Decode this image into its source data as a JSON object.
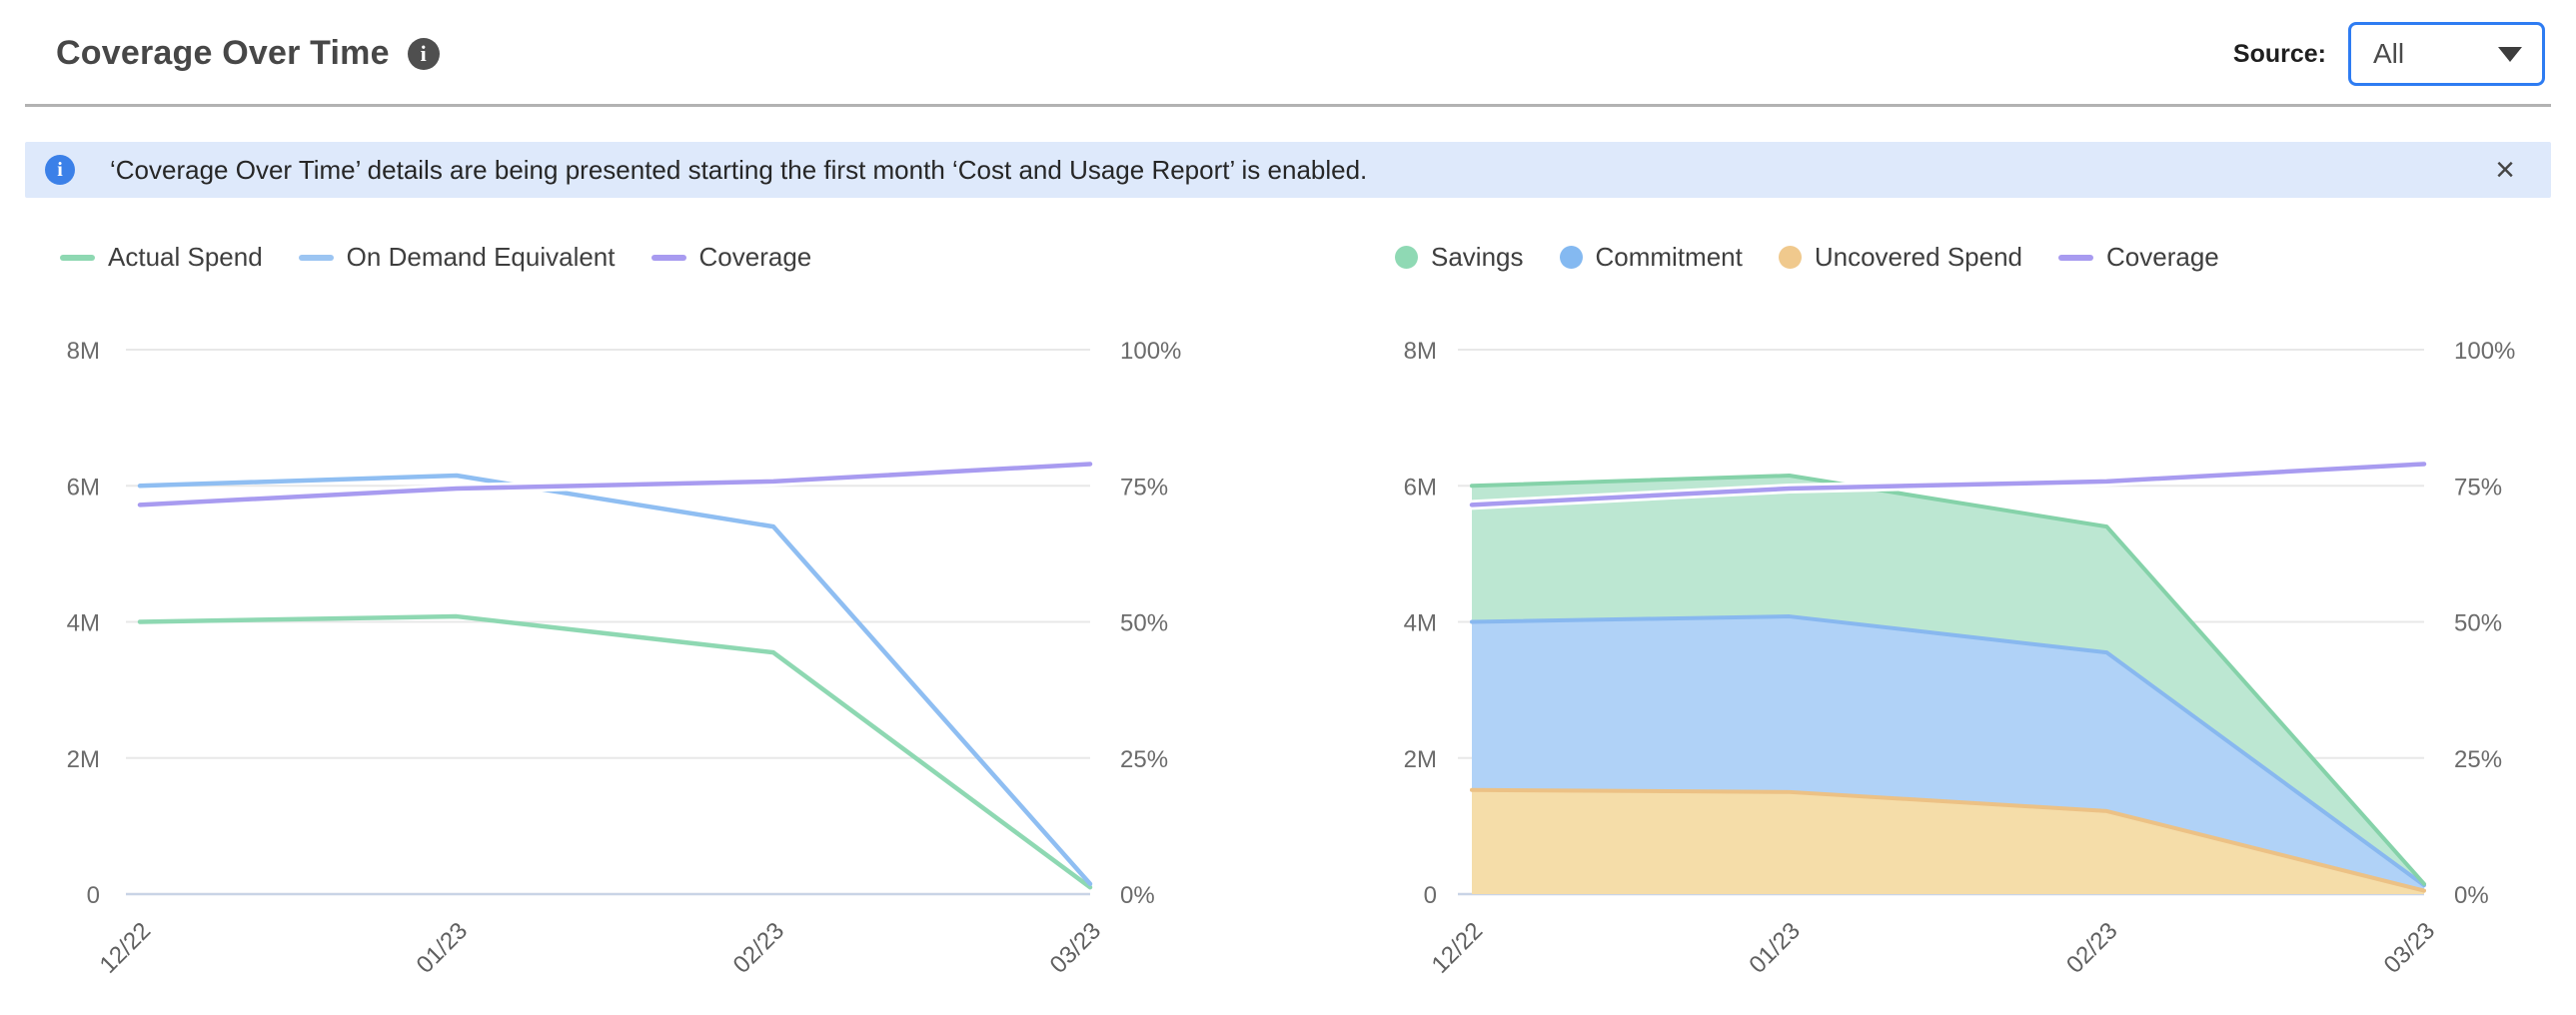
{
  "header": {
    "title": "Coverage Over Time",
    "source_label": "Source:",
    "source_value": "All"
  },
  "banner": {
    "text": "‘Coverage Over Time’ details are being presented starting the first month ‘Cost and Usage Report’ is enabled.",
    "close_glyph": "×"
  },
  "colors": {
    "green": "#8ed8b2",
    "green_fill": "#bce7d2",
    "blue": "#8fbef2",
    "blue_fill": "#b0d2f7",
    "orange": "#ecc185",
    "orange_fill": "#f5dda9",
    "purple": "#a89bf0",
    "grid": "#e8e8e8",
    "axis_line": "#c9d4e6",
    "tick_text": "#6b6b6b",
    "x_text": "#5f5f5f"
  },
  "chart_data": [
    {
      "type": "line",
      "x": [
        "12/22",
        "01/23",
        "02/23",
        "03/23"
      ],
      "y_left": {
        "ticks": [
          "8M",
          "6M",
          "4M",
          "2M",
          "0"
        ],
        "max": 8000000
      },
      "y_right": {
        "ticks": [
          "100%",
          "75%",
          "50%",
          "25%",
          "0%"
        ],
        "max": 100
      },
      "grid": true,
      "legend": [
        {
          "label": "Actual Spend",
          "color": "#8ed8b2",
          "shape": "line"
        },
        {
          "label": "On Demand Equivalent",
          "color": "#9cc5f2",
          "shape": "line"
        },
        {
          "label": "Coverage",
          "color": "#a89bf0",
          "shape": "line"
        }
      ],
      "series": [
        {
          "name": "Actual Spend",
          "kind": "line",
          "axis": "left",
          "color": "#8ed8b2",
          "values": [
            4000000,
            4080000,
            3550000,
            100000
          ]
        },
        {
          "name": "On Demand Equivalent",
          "kind": "line",
          "axis": "left",
          "color": "#8fbef2",
          "values": [
            6000000,
            6150000,
            5400000,
            150000
          ]
        },
        {
          "name": "Coverage",
          "kind": "line",
          "axis": "right",
          "color": "#a89bf0",
          "halo": true,
          "values": [
            71.5,
            74.5,
            75.8,
            79
          ]
        }
      ]
    },
    {
      "type": "area-stacked",
      "x": [
        "12/22",
        "01/23",
        "02/23",
        "03/23"
      ],
      "y_left": {
        "ticks": [
          "8M",
          "6M",
          "4M",
          "2M",
          "0"
        ],
        "max": 8000000
      },
      "y_right": {
        "ticks": [
          "100%",
          "75%",
          "50%",
          "25%",
          "0%"
        ],
        "max": 100
      },
      "grid": true,
      "legend": [
        {
          "label": "Savings",
          "color": "#8fd9b4",
          "shape": "dot"
        },
        {
          "label": "Commitment",
          "color": "#84b9f1",
          "shape": "dot"
        },
        {
          "label": "Uncovered Spend",
          "color": "#f0c98d",
          "shape": "dot"
        },
        {
          "label": "Coverage",
          "color": "#a89bf0",
          "shape": "line"
        }
      ],
      "series": [
        {
          "name": "Uncovered Spend",
          "kind": "area",
          "axis": "left",
          "color": "#ecc185",
          "fill": "#f5dda9",
          "values": [
            1530000,
            1500000,
            1220000,
            50000
          ]
        },
        {
          "name": "Commitment",
          "kind": "area",
          "axis": "left",
          "color": "#88b8ef",
          "fill": "#b0d2f7",
          "values": [
            2470000,
            2580000,
            2330000,
            80000
          ]
        },
        {
          "name": "Savings",
          "kind": "area",
          "axis": "left",
          "color": "#85d2a9",
          "fill": "#bce7d2",
          "values": [
            2000000,
            2070000,
            1850000,
            20000
          ]
        },
        {
          "name": "Coverage",
          "kind": "line",
          "axis": "right",
          "color": "#a89bf0",
          "halo": true,
          "values": [
            71.5,
            74.5,
            75.8,
            79
          ]
        }
      ]
    }
  ]
}
